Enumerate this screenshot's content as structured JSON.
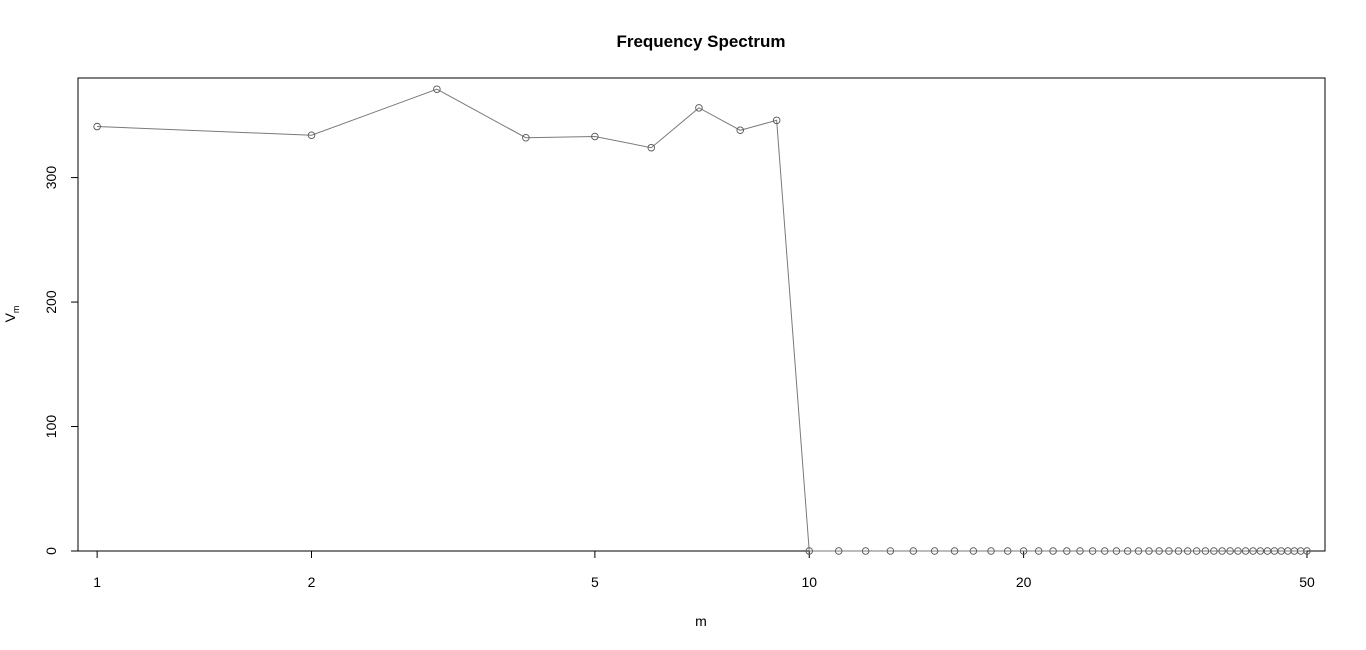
{
  "chart_data": {
    "type": "line",
    "title": "Frequency Spectrum",
    "xlabel": "m",
    "ylabel": "V",
    "ylabel_subscript": "m",
    "x_scale": "log",
    "xlim": [
      0.94,
      53
    ],
    "ylim": [
      0,
      380
    ],
    "x_ticks": [
      1,
      2,
      5,
      10,
      20,
      50
    ],
    "y_ticks": [
      0,
      100,
      200,
      300
    ],
    "grid": false,
    "legend": "none",
    "line_color": "#7a7a7a",
    "point_color": "#555555",
    "series": [
      {
        "x": [
          1,
          2,
          3,
          4,
          5,
          6,
          7,
          8,
          9,
          10,
          11,
          12,
          13,
          14,
          15,
          16,
          17,
          18,
          19,
          20,
          21,
          22,
          23,
          24,
          25,
          26,
          27,
          28,
          29,
          30,
          31,
          32,
          33,
          34,
          35,
          36,
          37,
          38,
          39,
          40,
          41,
          42,
          43,
          44,
          45,
          46,
          47,
          48,
          49,
          50
        ],
        "y": [
          341,
          334,
          371,
          332,
          333,
          324,
          356,
          338,
          346,
          0,
          0,
          0,
          0,
          0,
          0,
          0,
          0,
          0,
          0,
          0,
          0,
          0,
          0,
          0,
          0,
          0,
          0,
          0,
          0,
          0,
          0,
          0,
          0,
          0,
          0,
          0,
          0,
          0,
          0,
          0,
          0,
          0,
          0,
          0,
          0,
          0,
          0,
          0,
          0,
          0
        ]
      }
    ]
  }
}
